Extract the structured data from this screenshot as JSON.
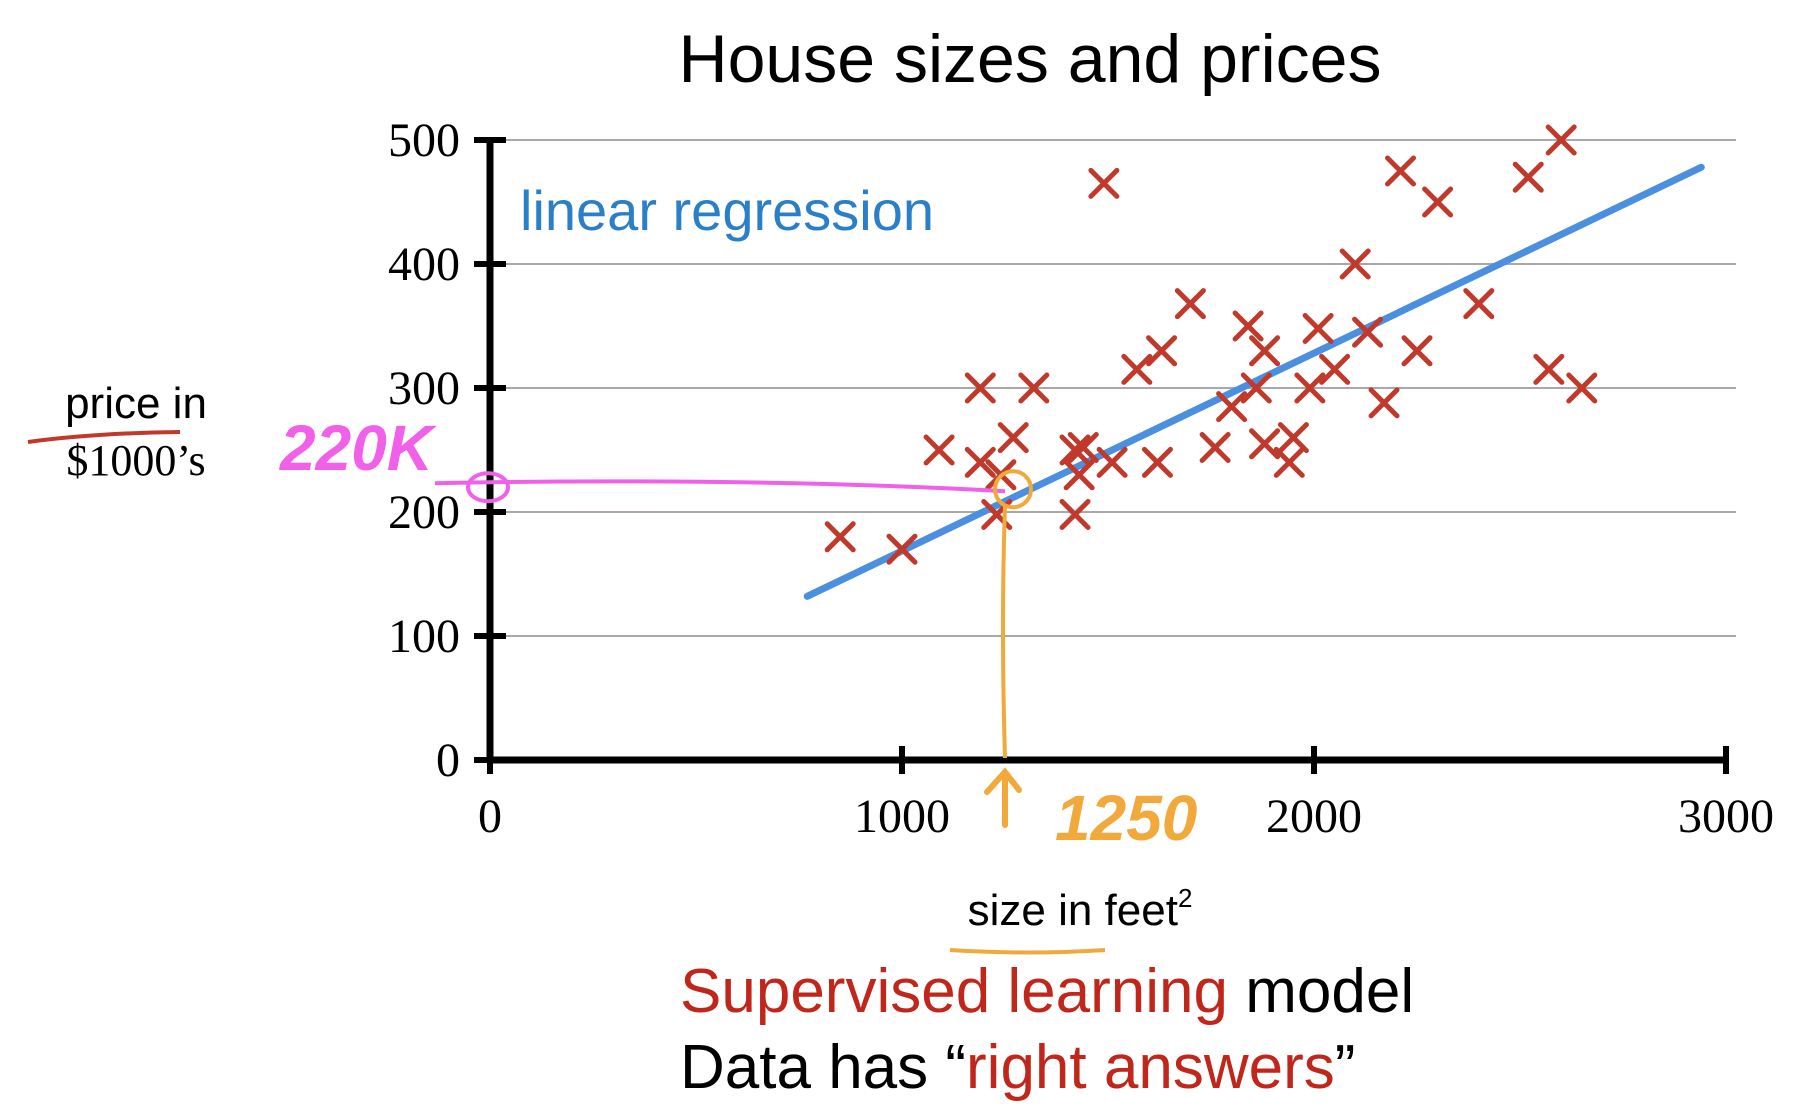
{
  "chart_data": {
    "type": "scatter",
    "title": "House sizes and prices",
    "xlabel": "size in feet",
    "xlabel_superscript": "2",
    "ylabel_line1": "price in",
    "ylabel_line2": "$1000’s",
    "xlim": [
      0,
      3000
    ],
    "ylim": [
      0,
      500
    ],
    "xticks": [
      0,
      1000,
      2000,
      3000
    ],
    "yticks": [
      0,
      100,
      200,
      300,
      400,
      500
    ],
    "grid": true,
    "points": [
      {
        "x": 850,
        "y": 180
      },
      {
        "x": 1000,
        "y": 170
      },
      {
        "x": 1090,
        "y": 250
      },
      {
        "x": 1190,
        "y": 300
      },
      {
        "x": 1190,
        "y": 240
      },
      {
        "x": 1240,
        "y": 230
      },
      {
        "x": 1230,
        "y": 198
      },
      {
        "x": 1270,
        "y": 260
      },
      {
        "x": 1320,
        "y": 300
      },
      {
        "x": 1420,
        "y": 250
      },
      {
        "x": 1440,
        "y": 252
      },
      {
        "x": 1430,
        "y": 230
      },
      {
        "x": 1420,
        "y": 198
      },
      {
        "x": 1510,
        "y": 240
      },
      {
        "x": 1490,
        "y": 465
      },
      {
        "x": 1570,
        "y": 315
      },
      {
        "x": 1630,
        "y": 330
      },
      {
        "x": 1620,
        "y": 240
      },
      {
        "x": 1700,
        "y": 368
      },
      {
        "x": 1760,
        "y": 252
      },
      {
        "x": 1800,
        "y": 285
      },
      {
        "x": 1840,
        "y": 350
      },
      {
        "x": 1860,
        "y": 300
      },
      {
        "x": 1880,
        "y": 255
      },
      {
        "x": 1880,
        "y": 330
      },
      {
        "x": 1940,
        "y": 240
      },
      {
        "x": 1950,
        "y": 260
      },
      {
        "x": 1990,
        "y": 300
      },
      {
        "x": 2010,
        "y": 348
      },
      {
        "x": 2050,
        "y": 315
      },
      {
        "x": 2100,
        "y": 400
      },
      {
        "x": 2130,
        "y": 345
      },
      {
        "x": 2170,
        "y": 288
      },
      {
        "x": 2210,
        "y": 475
      },
      {
        "x": 2250,
        "y": 330
      },
      {
        "x": 2300,
        "y": 450
      },
      {
        "x": 2400,
        "y": 368
      },
      {
        "x": 2520,
        "y": 470
      },
      {
        "x": 2600,
        "y": 500
      },
      {
        "x": 2570,
        "y": 315
      },
      {
        "x": 2650,
        "y": 300
      }
    ],
    "regression_line": {
      "label": "linear regression",
      "x": [
        770,
        2940
      ],
      "y": [
        132,
        478
      ]
    },
    "annotation_x": {
      "value": 1250,
      "label": "1250"
    },
    "annotation_y": {
      "value": 220,
      "label": "220K"
    },
    "colors": {
      "points": "#c0392b",
      "regression": "#4a8fe0",
      "annotation_x": "#f2a93b",
      "annotation_y": "#f060e8",
      "axis": "#000000",
      "grid": "#a8a8a8"
    }
  },
  "caption": {
    "line1_red": "Supervised learning",
    "line1_black": "model",
    "line2_black_start": "Data has “",
    "line2_red": "right answers",
    "line2_black_end": "”"
  }
}
